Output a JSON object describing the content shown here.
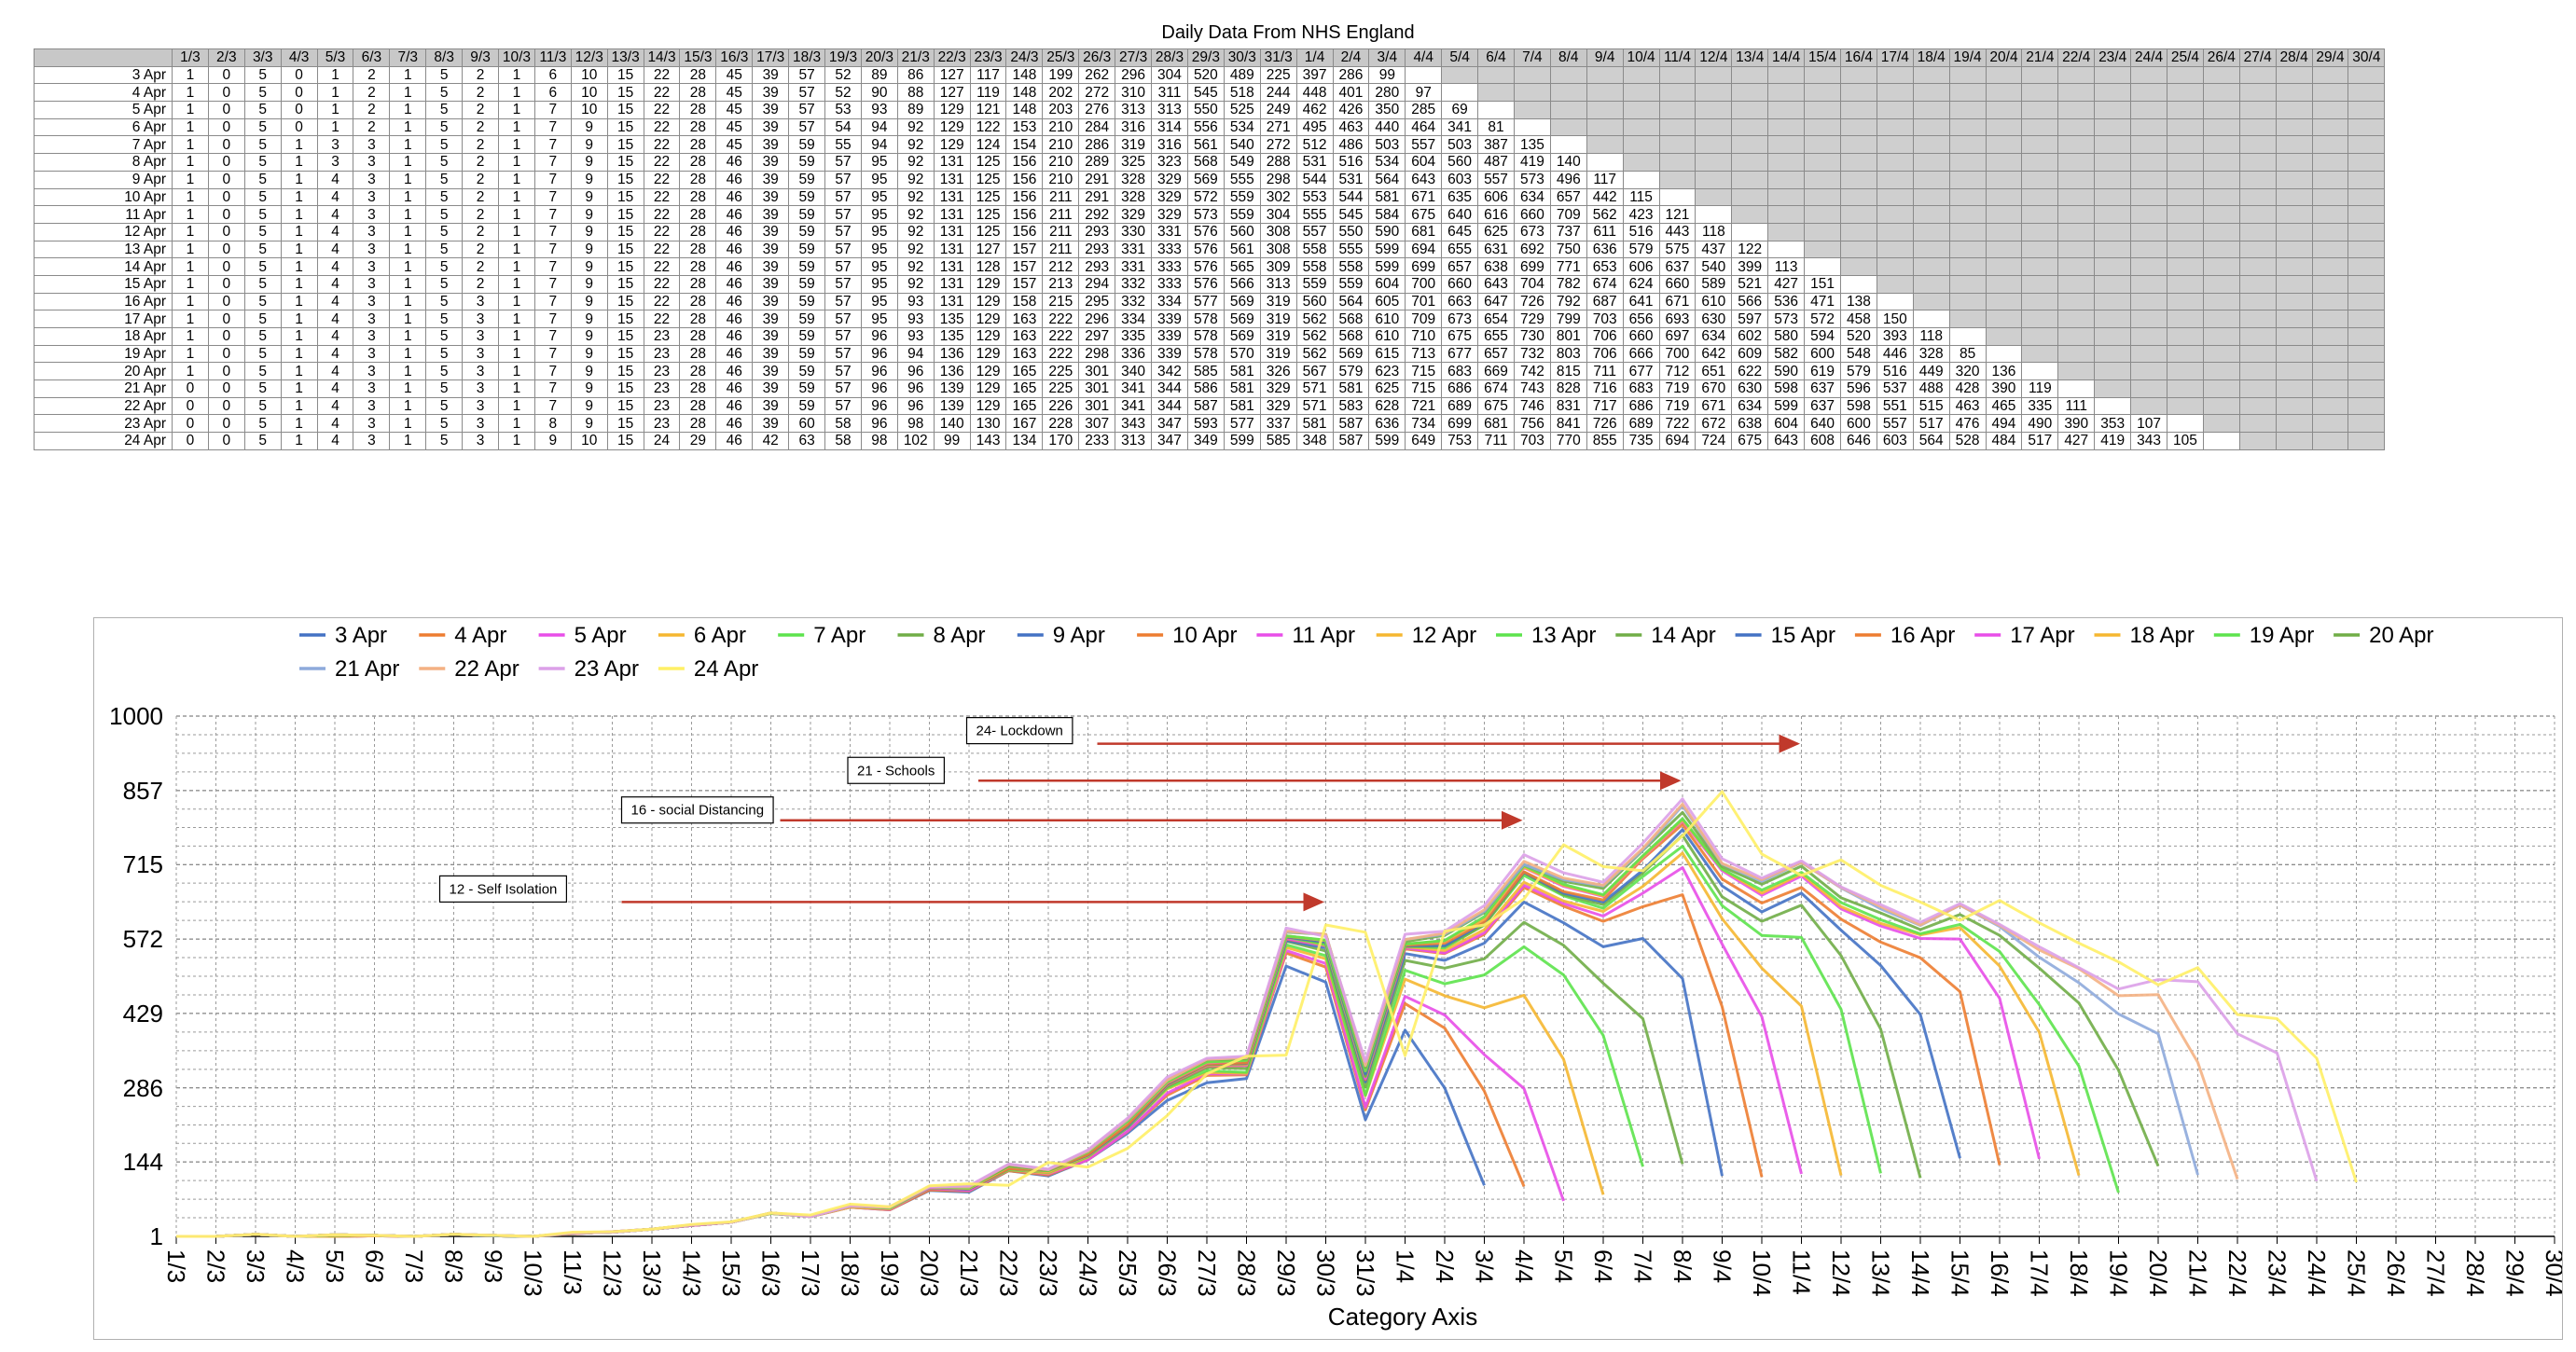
{
  "table": {
    "title": "Daily Data From NHS England",
    "columns": [
      "1/3",
      "2/3",
      "3/3",
      "4/3",
      "5/3",
      "6/3",
      "7/3",
      "8/3",
      "9/3",
      "10/3",
      "11/3",
      "12/3",
      "13/3",
      "14/3",
      "15/3",
      "16/3",
      "17/3",
      "18/3",
      "19/3",
      "20/3",
      "21/3",
      "22/3",
      "23/3",
      "24/3",
      "25/3",
      "26/3",
      "27/3",
      "28/3",
      "29/3",
      "30/3",
      "31/3",
      "1/4",
      "2/4",
      "3/4",
      "4/4",
      "5/4",
      "6/4",
      "7/4",
      "8/4",
      "9/4",
      "10/4",
      "11/4",
      "12/4",
      "13/4",
      "14/4",
      "15/4",
      "16/4",
      "17/4",
      "18/4",
      "19/4",
      "20/4",
      "21/4",
      "22/4",
      "23/4",
      "24/4",
      "25/4",
      "26/4",
      "27/4",
      "28/4",
      "29/4",
      "30/4"
    ],
    "rows": [
      {
        "label": "3 Apr",
        "values": [
          1,
          0,
          5,
          0,
          1,
          2,
          1,
          5,
          2,
          1,
          6,
          10,
          15,
          22,
          28,
          45,
          39,
          57,
          52,
          89,
          86,
          127,
          117,
          148,
          199,
          262,
          296,
          304,
          520,
          489,
          225,
          397,
          286,
          99
        ]
      },
      {
        "label": "4 Apr",
        "values": [
          1,
          0,
          5,
          0,
          1,
          2,
          1,
          5,
          2,
          1,
          6,
          10,
          15,
          22,
          28,
          45,
          39,
          57,
          52,
          90,
          88,
          127,
          119,
          148,
          202,
          272,
          310,
          311,
          545,
          518,
          244,
          448,
          401,
          280,
          97
        ]
      },
      {
        "label": "5 Apr",
        "values": [
          1,
          0,
          5,
          0,
          1,
          2,
          1,
          5,
          2,
          1,
          7,
          10,
          15,
          22,
          28,
          45,
          39,
          57,
          53,
          93,
          89,
          129,
          121,
          148,
          203,
          276,
          313,
          313,
          550,
          525,
          249,
          462,
          426,
          350,
          285,
          69
        ]
      },
      {
        "label": "6 Apr",
        "values": [
          1,
          0,
          5,
          0,
          1,
          2,
          1,
          5,
          2,
          1,
          7,
          9,
          15,
          22,
          28,
          45,
          39,
          57,
          54,
          94,
          92,
          129,
          122,
          153,
          210,
          284,
          316,
          314,
          556,
          534,
          271,
          495,
          463,
          440,
          464,
          341,
          81
        ]
      },
      {
        "label": "7 Apr",
        "values": [
          1,
          0,
          5,
          1,
          3,
          3,
          1,
          5,
          2,
          1,
          7,
          9,
          15,
          22,
          28,
          45,
          39,
          59,
          55,
          94,
          92,
          129,
          124,
          154,
          210,
          286,
          319,
          316,
          561,
          540,
          272,
          512,
          486,
          503,
          557,
          503,
          387,
          135
        ]
      },
      {
        "label": "8 Apr",
        "values": [
          1,
          0,
          5,
          1,
          3,
          3,
          1,
          5,
          2,
          1,
          7,
          9,
          15,
          22,
          28,
          46,
          39,
          59,
          57,
          95,
          92,
          131,
          125,
          156,
          210,
          289,
          325,
          323,
          568,
          549,
          288,
          531,
          516,
          534,
          604,
          560,
          487,
          419,
          140
        ]
      },
      {
        "label": "9 Apr",
        "values": [
          1,
          0,
          5,
          1,
          4,
          3,
          1,
          5,
          2,
          1,
          7,
          9,
          15,
          22,
          28,
          46,
          39,
          59,
          57,
          95,
          92,
          131,
          125,
          156,
          210,
          291,
          328,
          329,
          569,
          555,
          298,
          544,
          531,
          564,
          643,
          603,
          557,
          573,
          496,
          117
        ]
      },
      {
        "label": "10 Apr",
        "values": [
          1,
          0,
          5,
          1,
          4,
          3,
          1,
          5,
          2,
          1,
          7,
          9,
          15,
          22,
          28,
          46,
          39,
          59,
          57,
          95,
          92,
          131,
          125,
          156,
          211,
          291,
          328,
          329,
          572,
          559,
          302,
          553,
          544,
          581,
          671,
          635,
          606,
          634,
          657,
          442,
          115
        ]
      },
      {
        "label": "11 Apr",
        "values": [
          1,
          0,
          5,
          1,
          4,
          3,
          1,
          5,
          2,
          1,
          7,
          9,
          15,
          22,
          28,
          46,
          39,
          59,
          57,
          95,
          92,
          131,
          125,
          156,
          211,
          292,
          329,
          329,
          573,
          559,
          304,
          555,
          545,
          584,
          675,
          640,
          616,
          660,
          709,
          562,
          423,
          121
        ]
      },
      {
        "label": "12 Apr",
        "values": [
          1,
          0,
          5,
          1,
          4,
          3,
          1,
          5,
          2,
          1,
          7,
          9,
          15,
          22,
          28,
          46,
          39,
          59,
          57,
          95,
          92,
          131,
          125,
          156,
          211,
          293,
          330,
          331,
          576,
          560,
          308,
          557,
          550,
          590,
          681,
          645,
          625,
          673,
          737,
          611,
          516,
          443,
          118
        ]
      },
      {
        "label": "13 Apr",
        "values": [
          1,
          0,
          5,
          1,
          4,
          3,
          1,
          5,
          2,
          1,
          7,
          9,
          15,
          22,
          28,
          46,
          39,
          59,
          57,
          95,
          92,
          131,
          127,
          157,
          211,
          293,
          331,
          333,
          576,
          561,
          308,
          558,
          555,
          599,
          694,
          655,
          631,
          692,
          750,
          636,
          579,
          575,
          437,
          122
        ]
      },
      {
        "label": "14 Apr",
        "values": [
          1,
          0,
          5,
          1,
          4,
          3,
          1,
          5,
          2,
          1,
          7,
          9,
          15,
          22,
          28,
          46,
          39,
          59,
          57,
          95,
          92,
          131,
          128,
          157,
          212,
          293,
          331,
          333,
          576,
          565,
          309,
          558,
          558,
          599,
          699,
          657,
          638,
          699,
          771,
          653,
          606,
          637,
          540,
          399,
          113
        ]
      },
      {
        "label": "15 Apr",
        "values": [
          1,
          0,
          5,
          1,
          4,
          3,
          1,
          5,
          2,
          1,
          7,
          9,
          15,
          22,
          28,
          46,
          39,
          59,
          57,
          95,
          92,
          131,
          129,
          157,
          213,
          294,
          332,
          333,
          576,
          566,
          313,
          559,
          559,
          604,
          700,
          660,
          643,
          704,
          782,
          674,
          624,
          660,
          589,
          521,
          427,
          151
        ]
      },
      {
        "label": "16 Apr",
        "values": [
          1,
          0,
          5,
          1,
          4,
          3,
          1,
          5,
          3,
          1,
          7,
          9,
          15,
          22,
          28,
          46,
          39,
          59,
          57,
          95,
          93,
          131,
          129,
          158,
          215,
          295,
          332,
          334,
          577,
          569,
          319,
          560,
          564,
          605,
          701,
          663,
          647,
          726,
          792,
          687,
          641,
          671,
          610,
          566,
          536,
          471,
          138
        ]
      },
      {
        "label": "17 Apr",
        "values": [
          1,
          0,
          5,
          1,
          4,
          3,
          1,
          5,
          3,
          1,
          7,
          9,
          15,
          22,
          28,
          46,
          39,
          59,
          57,
          95,
          93,
          135,
          129,
          163,
          222,
          296,
          334,
          339,
          578,
          569,
          319,
          562,
          568,
          610,
          709,
          673,
          654,
          729,
          799,
          703,
          656,
          693,
          630,
          597,
          573,
          572,
          458,
          150
        ]
      },
      {
        "label": "18 Apr",
        "values": [
          1,
          0,
          5,
          1,
          4,
          3,
          1,
          5,
          3,
          1,
          7,
          9,
          15,
          23,
          28,
          46,
          39,
          59,
          57,
          96,
          93,
          135,
          129,
          163,
          222,
          297,
          335,
          339,
          578,
          569,
          319,
          562,
          568,
          610,
          710,
          675,
          655,
          730,
          801,
          706,
          660,
          697,
          634,
          602,
          580,
          594,
          520,
          393,
          118
        ]
      },
      {
        "label": "19 Apr",
        "values": [
          1,
          0,
          5,
          1,
          4,
          3,
          1,
          5,
          3,
          1,
          7,
          9,
          15,
          23,
          28,
          46,
          39,
          59,
          57,
          96,
          94,
          136,
          129,
          163,
          222,
          298,
          336,
          339,
          578,
          570,
          319,
          562,
          569,
          615,
          713,
          677,
          657,
          732,
          803,
          706,
          666,
          700,
          642,
          609,
          582,
          600,
          548,
          446,
          328,
          85
        ]
      },
      {
        "label": "20 Apr",
        "values": [
          1,
          0,
          5,
          1,
          4,
          3,
          1,
          5,
          3,
          1,
          7,
          9,
          15,
          23,
          28,
          46,
          39,
          59,
          57,
          96,
          96,
          136,
          129,
          165,
          225,
          301,
          340,
          342,
          585,
          581,
          326,
          567,
          579,
          623,
          715,
          683,
          669,
          742,
          815,
          711,
          677,
          712,
          651,
          622,
          590,
          619,
          579,
          516,
          449,
          320,
          136
        ]
      },
      {
        "label": "21 Apr",
        "values": [
          0,
          0,
          5,
          1,
          4,
          3,
          1,
          5,
          3,
          1,
          7,
          9,
          15,
          23,
          28,
          46,
          39,
          59,
          57,
          96,
          96,
          139,
          129,
          165,
          225,
          301,
          341,
          344,
          586,
          581,
          329,
          571,
          581,
          625,
          715,
          686,
          674,
          743,
          828,
          716,
          683,
          719,
          670,
          630,
          598,
          637,
          596,
          537,
          488,
          428,
          390,
          119
        ]
      },
      {
        "label": "22 Apr",
        "values": [
          0,
          0,
          5,
          1,
          4,
          3,
          1,
          5,
          3,
          1,
          7,
          9,
          15,
          23,
          28,
          46,
          39,
          59,
          57,
          96,
          96,
          139,
          129,
          165,
          226,
          301,
          341,
          344,
          587,
          581,
          329,
          571,
          583,
          628,
          721,
          689,
          675,
          746,
          831,
          717,
          686,
          719,
          671,
          634,
          599,
          637,
          598,
          551,
          515,
          463,
          465,
          335,
          111
        ]
      },
      {
        "label": "23 Apr",
        "values": [
          0,
          0,
          5,
          1,
          4,
          3,
          1,
          5,
          3,
          1,
          8,
          9,
          15,
          23,
          28,
          46,
          39,
          60,
          58,
          96,
          98,
          140,
          130,
          167,
          228,
          307,
          343,
          347,
          593,
          577,
          337,
          581,
          587,
          636,
          734,
          699,
          681,
          756,
          841,
          726,
          689,
          722,
          672,
          638,
          604,
          640,
          600,
          557,
          517,
          476,
          494,
          490,
          390,
          353,
          107
        ]
      },
      {
        "label": "24 Apr",
        "values": [
          0,
          0,
          5,
          1,
          4,
          3,
          1,
          5,
          3,
          1,
          9,
          10,
          15,
          24,
          29,
          46,
          42,
          63,
          58,
          98,
          102,
          99,
          143,
          134,
          170,
          233,
          313,
          347,
          349,
          599,
          585,
          348,
          587,
          599,
          649,
          753,
          711,
          703,
          770,
          855,
          735,
          694,
          724,
          675,
          643,
          608,
          646,
          603,
          564,
          528,
          484,
          517,
          427,
          419,
          343,
          105
        ]
      }
    ]
  },
  "chart_data": {
    "type": "line",
    "title": "",
    "xlabel": "Category Axis",
    "ylabel": "",
    "ylim": [
      1,
      1000
    ],
    "yticks": [
      1,
      144,
      286,
      429,
      572,
      715,
      857,
      1000
    ],
    "grid": true,
    "legend_position": "top",
    "series_colors": [
      "#4472c4",
      "#ed7d31",
      "#e84ee8",
      "#f5b731",
      "#5de34d",
      "#70ad47",
      "#4472c4",
      "#ed7d31",
      "#e84ee8",
      "#f5b731",
      "#5de34d",
      "#70ad47",
      "#4472c4",
      "#ed7d31",
      "#e84ee8",
      "#f5b731",
      "#5de34d",
      "#70ad47",
      "#8eaadb",
      "#f4b183",
      "#dca0e8",
      "#fff066"
    ],
    "x": [
      "1/3",
      "2/3",
      "3/3",
      "4/3",
      "5/3",
      "6/3",
      "7/3",
      "8/3",
      "9/3",
      "10/3",
      "11/3",
      "12/3",
      "13/3",
      "14/3",
      "15/3",
      "16/3",
      "17/3",
      "18/3",
      "19/3",
      "20/3",
      "21/3",
      "22/3",
      "23/3",
      "24/3",
      "25/3",
      "26/3",
      "27/3",
      "28/3",
      "29/3",
      "30/3",
      "31/3",
      "1/4",
      "2/4",
      "3/4",
      "4/4",
      "5/4",
      "6/4",
      "7/4",
      "8/4",
      "9/4",
      "10/4",
      "11/4",
      "12/4",
      "13/4",
      "14/4",
      "15/4",
      "16/4",
      "17/4",
      "18/4",
      "19/4",
      "20/4",
      "21/4",
      "22/4",
      "23/4",
      "24/4",
      "25/4",
      "26/4",
      "27/4",
      "28/4",
      "29/4",
      "30/4"
    ],
    "series_source": "table.rows",
    "annotations": [
      {
        "text": "24- Lockdown",
        "arrow_from": "24/3",
        "arrow_to": "11/4",
        "level": 947,
        "color": "#c0392b"
      },
      {
        "text": "21 - Schools",
        "arrow_from": "21/3",
        "arrow_to": "8/4",
        "level": 876,
        "color": "#c0392b"
      },
      {
        "text": "16 - social Distancing",
        "arrow_from": "16/3",
        "arrow_to": "4/4",
        "level": 800,
        "color": "#c0392b"
      },
      {
        "text": "12 - Self Isolation",
        "arrow_from": "12/3",
        "arrow_to": "30/3",
        "level": 643,
        "color": "#c0392b"
      }
    ]
  }
}
